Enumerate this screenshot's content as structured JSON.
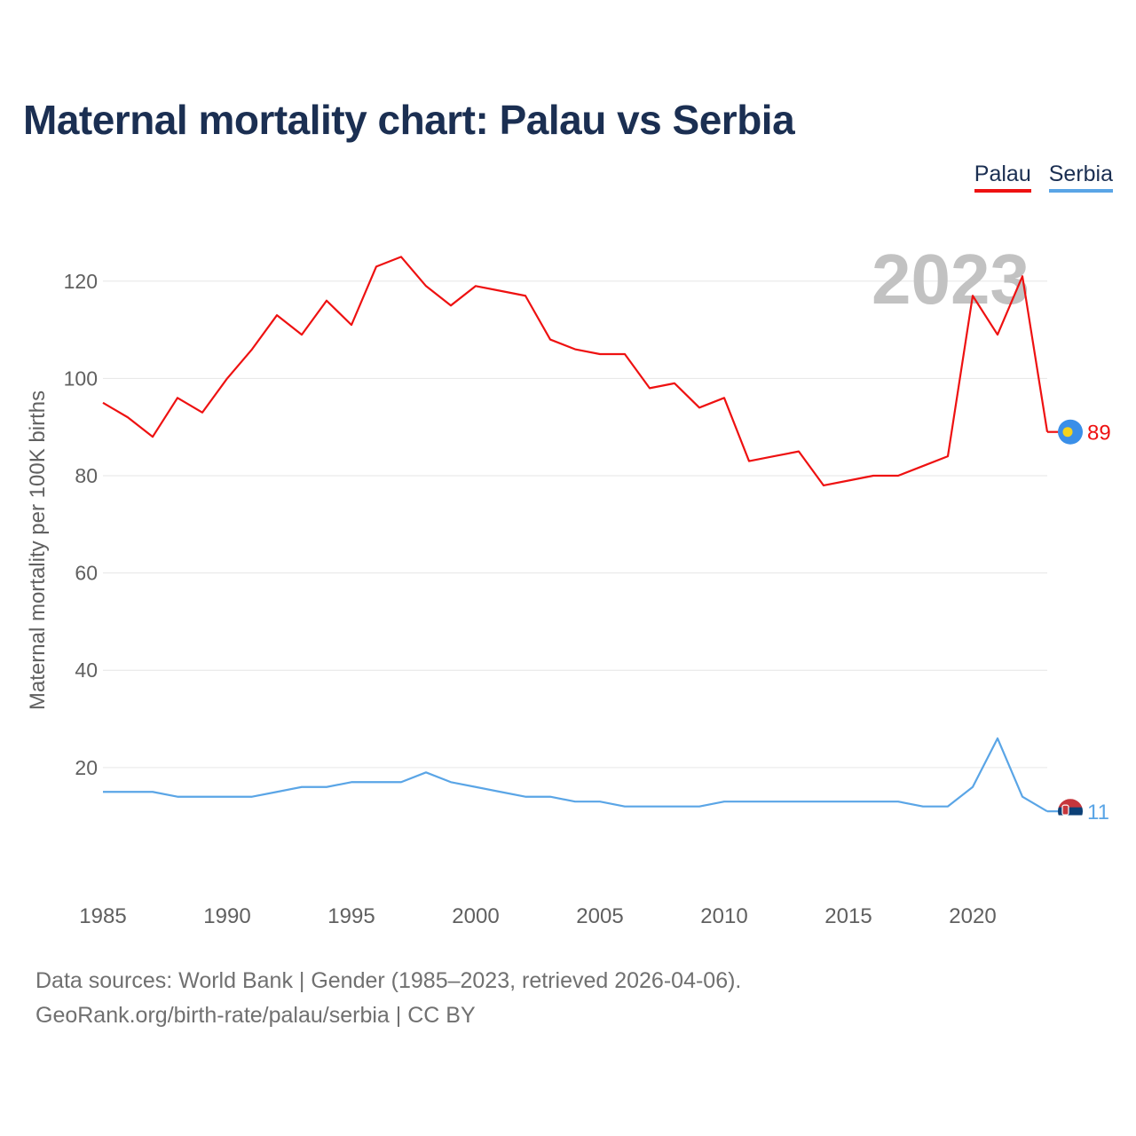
{
  "page": {
    "title": "Maternal mortality chart: Palau vs Serbia",
    "footer_line1": "Data sources: World Bank | Gender (1985–2023, retrieved 2026-04-06).",
    "footer_line2": "GeoRank.org/birth-rate/palau/serbia | CC BY"
  },
  "chart_data": {
    "type": "line",
    "title": "Maternal mortality chart: Palau vs Serbia",
    "ylabel": "Maternal mortality per 100K births",
    "xlabel": "",
    "year_label": "2023",
    "x": [
      1985,
      1986,
      1987,
      1988,
      1989,
      1990,
      1991,
      1992,
      1993,
      1994,
      1995,
      1996,
      1997,
      1998,
      1999,
      2000,
      2001,
      2002,
      2003,
      2004,
      2005,
      2006,
      2007,
      2008,
      2009,
      2010,
      2011,
      2012,
      2013,
      2014,
      2015,
      2016,
      2017,
      2018,
      2019,
      2020,
      2021,
      2022,
      2023
    ],
    "xlim": [
      1985,
      2023
    ],
    "ylim": [
      3,
      130
    ],
    "xticks": [
      1985,
      1990,
      1995,
      2000,
      2005,
      2010,
      2015,
      2020
    ],
    "yticks": [
      20,
      40,
      60,
      80,
      100,
      120
    ],
    "grid": true,
    "legend_position": "top-right",
    "series": [
      {
        "name": "Palau",
        "color": "#ee1111",
        "end_label": "89",
        "flag_icon": "palau-flag-icon",
        "values": [
          95,
          92,
          88,
          96,
          93,
          100,
          106,
          113,
          109,
          116,
          111,
          123,
          125,
          119,
          115,
          119,
          118,
          117,
          108,
          106,
          105,
          105,
          98,
          99,
          94,
          96,
          83,
          84,
          85,
          78,
          79,
          80,
          80,
          82,
          84,
          117,
          109,
          121,
          89
        ]
      },
      {
        "name": "Serbia",
        "color": "#5aa5e6",
        "end_label": "11",
        "flag_icon": "serbia-flag-icon",
        "values": [
          15,
          15,
          15,
          14,
          14,
          14,
          14,
          15,
          16,
          16,
          17,
          17,
          17,
          19,
          17,
          16,
          15,
          14,
          14,
          13,
          13,
          12,
          12,
          12,
          12,
          13,
          13,
          13,
          13,
          13,
          13,
          13,
          13,
          12,
          12,
          16,
          26,
          14,
          11
        ]
      }
    ]
  }
}
